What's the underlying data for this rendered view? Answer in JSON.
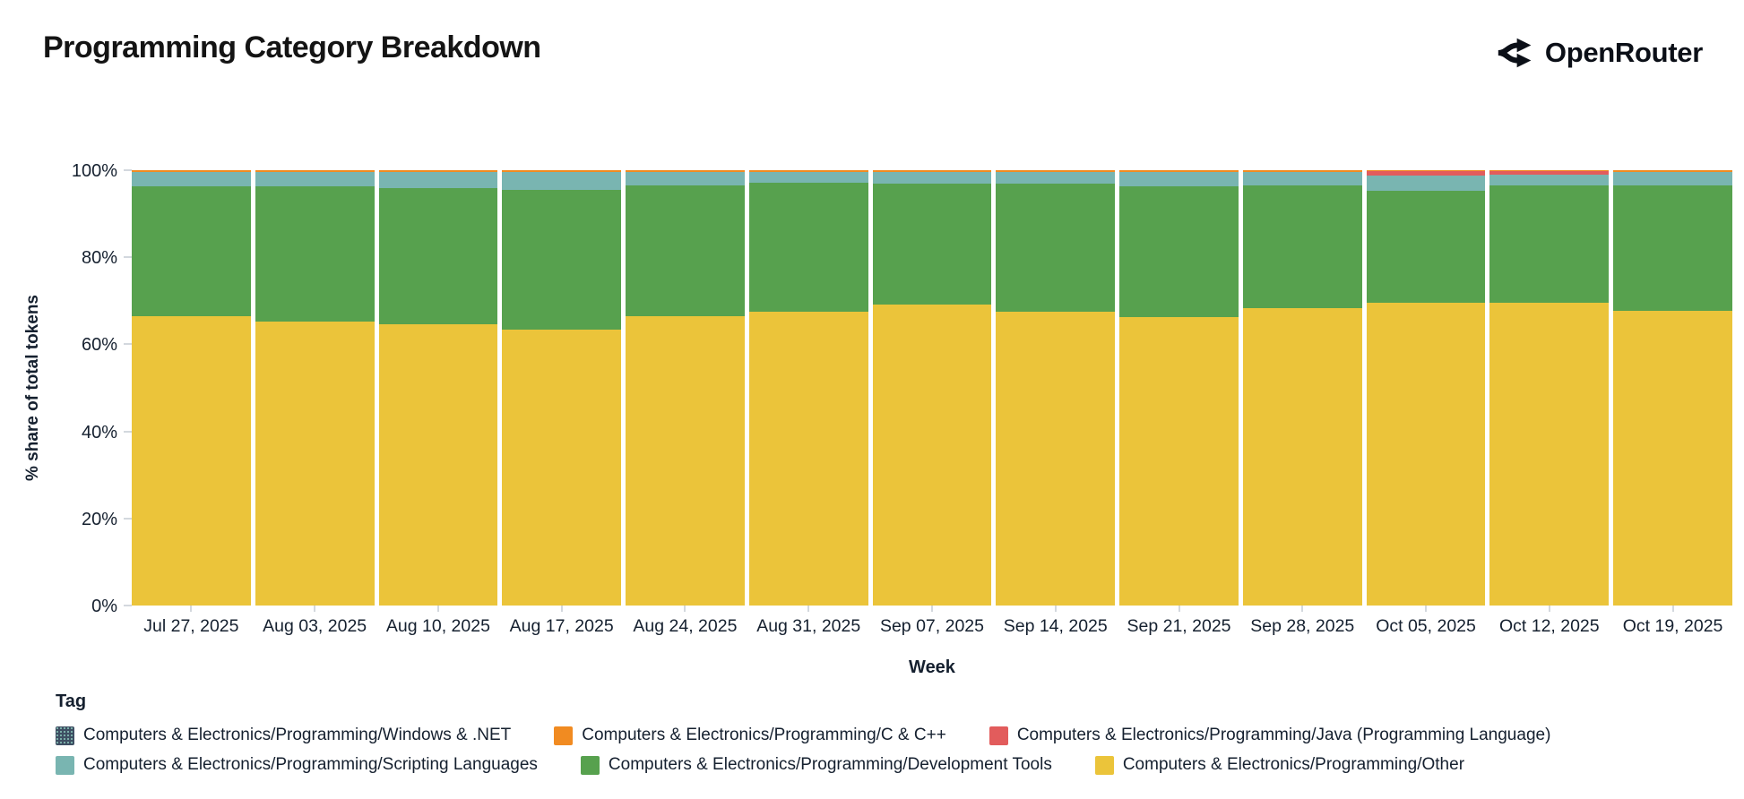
{
  "header": {
    "title": "Programming Category Breakdown",
    "brand": "OpenRouter"
  },
  "chart": {
    "y_axis_label": "% share of total tokens",
    "x_axis_label": "Week",
    "y_ticks": [
      "0%",
      "20%",
      "40%",
      "60%",
      "80%",
      "100%"
    ]
  },
  "legend": {
    "title": "Tag",
    "items": [
      {
        "label": "Computers & Electronics/Programming/Windows & .NET",
        "color": "#3e4f63",
        "pattern": "dots"
      },
      {
        "label": "Computers & Electronics/Programming/C & C++",
        "color": "#f18b21",
        "pattern": "solid"
      },
      {
        "label": "Computers & Electronics/Programming/Java (Programming Language)",
        "color": "#e25c5c",
        "pattern": "solid"
      },
      {
        "label": "Computers & Electronics/Programming/Scripting Languages",
        "color": "#79b5b1",
        "pattern": "solid"
      },
      {
        "label": "Computers & Electronics/Programming/Development Tools",
        "color": "#57a14e",
        "pattern": "solid"
      },
      {
        "label": "Computers & Electronics/Programming/Other",
        "color": "#ebc43a",
        "pattern": "solid"
      }
    ]
  },
  "chart_data": {
    "type": "bar",
    "stacked": true,
    "unit": "percent share of total tokens",
    "title": "Programming Category Breakdown",
    "xlabel": "Week",
    "ylabel": "% share of total tokens",
    "ylim": [
      0,
      100
    ],
    "y_tick_values": [
      0,
      20,
      40,
      60,
      80,
      100
    ],
    "grid": false,
    "legend_position": "bottom",
    "categories": [
      "Jul 27, 2025",
      "Aug 03, 2025",
      "Aug 10, 2025",
      "Aug 17, 2025",
      "Aug 24, 2025",
      "Aug 31, 2025",
      "Sep 07, 2025",
      "Sep 14, 2025",
      "Sep 21, 2025",
      "Sep 28, 2025",
      "Oct 05, 2025",
      "Oct 12, 2025",
      "Oct 19, 2025"
    ],
    "series": [
      {
        "name": "Computers & Electronics/Programming/Other",
        "color": "#ebc43a",
        "values": [
          66.5,
          65.2,
          64.6,
          63.4,
          66.4,
          67.5,
          69.2,
          67.5,
          66.3,
          68.3,
          69.5,
          69.6,
          67.6
        ]
      },
      {
        "name": "Computers & Electronics/Programming/Development Tools",
        "color": "#57a14e",
        "values": [
          29.8,
          31.0,
          31.2,
          32.0,
          30.0,
          29.7,
          27.7,
          29.4,
          29.9,
          28.3,
          25.7,
          26.9,
          28.8
        ]
      },
      {
        "name": "Computers & Electronics/Programming/Scripting Languages",
        "color": "#79b5b1",
        "values": [
          3.3,
          3.4,
          3.8,
          4.2,
          3.2,
          2.4,
          2.7,
          2.7,
          3.4,
          3.0,
          3.6,
          2.4,
          3.2
        ]
      },
      {
        "name": "Computers & Electronics/Programming/Java (Programming Language)",
        "color": "#e25c5c",
        "values": [
          0,
          0,
          0,
          0,
          0,
          0,
          0,
          0,
          0,
          0,
          1.0,
          0.9,
          0
        ]
      },
      {
        "name": "Computers & Electronics/Programming/C & C++",
        "color": "#f18b21",
        "values": [
          0.4,
          0.4,
          0.4,
          0.4,
          0.4,
          0.4,
          0.4,
          0.4,
          0.4,
          0.4,
          0.2,
          0.2,
          0.4
        ]
      },
      {
        "name": "Computers & Electronics/Programming/Windows & .NET",
        "color": "#3e4f63",
        "values": [
          0,
          0,
          0,
          0,
          0,
          0,
          0,
          0,
          0,
          0,
          0,
          0,
          0
        ]
      }
    ]
  }
}
